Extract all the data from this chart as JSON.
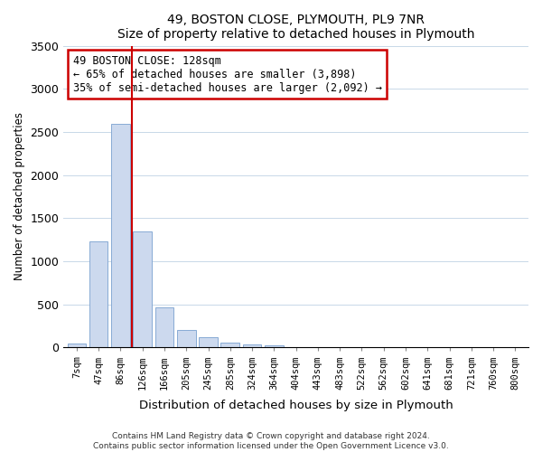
{
  "title": "49, BOSTON CLOSE, PLYMOUTH, PL9 7NR",
  "subtitle": "Size of property relative to detached houses in Plymouth",
  "xlabel": "Distribution of detached houses by size in Plymouth",
  "ylabel": "Number of detached properties",
  "bar_labels": [
    "7sqm",
    "47sqm",
    "86sqm",
    "126sqm",
    "166sqm",
    "205sqm",
    "245sqm",
    "285sqm",
    "324sqm",
    "364sqm",
    "404sqm",
    "443sqm",
    "483sqm",
    "522sqm",
    "562sqm",
    "602sqm",
    "641sqm",
    "681sqm",
    "721sqm",
    "760sqm",
    "800sqm"
  ],
  "bar_values": [
    50,
    1230,
    2590,
    1350,
    470,
    200,
    115,
    55,
    35,
    20,
    0,
    0,
    0,
    0,
    0,
    0,
    0,
    0,
    0,
    0,
    0
  ],
  "bar_color": "#ccd9ee",
  "bar_edge_color": "#88aad4",
  "vline_x": 2.5,
  "vline_color": "#cc0000",
  "ylim": [
    0,
    3500
  ],
  "yticks": [
    0,
    500,
    1000,
    1500,
    2000,
    2500,
    3000,
    3500
  ],
  "annotation_title": "49 BOSTON CLOSE: 128sqm",
  "annotation_line1": "← 65% of detached houses are smaller (3,898)",
  "annotation_line2": "35% of semi-detached houses are larger (2,092) →",
  "annotation_box_color": "#ffffff",
  "annotation_box_edge": "#cc0000",
  "footnote1": "Contains HM Land Registry data © Crown copyright and database right 2024.",
  "footnote2": "Contains public sector information licensed under the Open Government Licence v3.0."
}
